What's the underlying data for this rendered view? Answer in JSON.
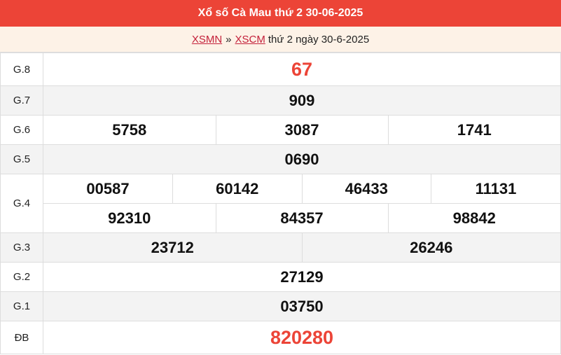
{
  "header": {
    "title": "Xổ số Cà Mau thứ 2 30-06-2025"
  },
  "breadcrumb": {
    "link1": "XSMN",
    "separator": "»",
    "link2": "XSCM",
    "rest": "thứ 2 ngày 30-6-2025"
  },
  "prizes": [
    {
      "label": "G.8",
      "numbers": [
        "67"
      ]
    },
    {
      "label": "G.7",
      "numbers": [
        "909"
      ]
    },
    {
      "label": "G.6",
      "numbers": [
        "5758",
        "3087",
        "1741"
      ]
    },
    {
      "label": "G.5",
      "numbers": [
        "0690"
      ]
    },
    {
      "label": "G.4",
      "numbers": [
        "00587",
        "60142",
        "46433",
        "11131",
        "92310",
        "84357",
        "98842"
      ]
    },
    {
      "label": "G.3",
      "numbers": [
        "23712",
        "26246"
      ]
    },
    {
      "label": "G.2",
      "numbers": [
        "27129"
      ]
    },
    {
      "label": "G.1",
      "numbers": [
        "03750"
      ]
    },
    {
      "label": "ĐB",
      "numbers": [
        "820280"
      ]
    }
  ],
  "colors": {
    "accent": "#ec4437",
    "link": "#c4203a",
    "subheader_bg": "#fdf2e7"
  }
}
